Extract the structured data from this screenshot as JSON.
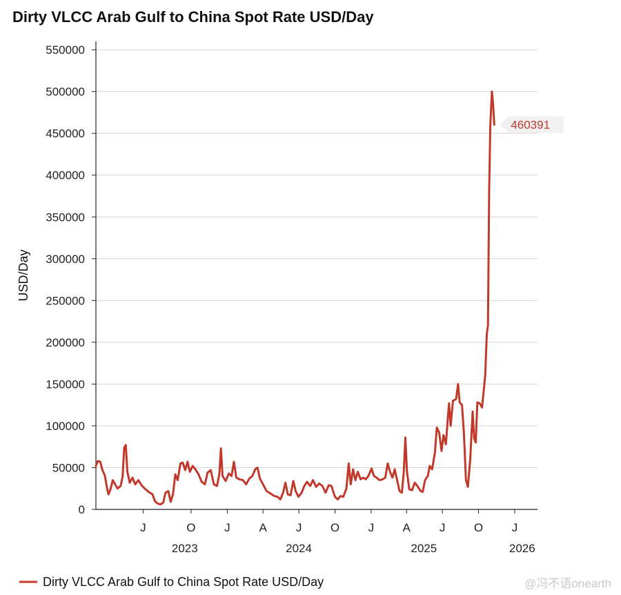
{
  "chart_data": {
    "type": "line",
    "title": "Dirty VLCC Arab Gulf to China Spot Rate USD/Day",
    "ylabel": "USD/Day",
    "xlabel": "",
    "ylim": [
      0,
      560000
    ],
    "xlim": [
      "2023-02-01",
      "2026-02-28"
    ],
    "grid": true,
    "legend_position": "bottom-left",
    "yticks": [
      "0",
      "50000",
      "100000",
      "150000",
      "200000",
      "250000",
      "300000",
      "350000",
      "400000",
      "450000",
      "500000",
      "550000"
    ],
    "xticks": [
      {
        "date": "2023-06-01",
        "label": "J"
      },
      {
        "date": "2023-10-01",
        "label": "O"
      },
      {
        "date": "2024-01-01",
        "label": "J"
      },
      {
        "date": "2024-04-01",
        "label": "A"
      },
      {
        "date": "2024-07-01",
        "label": "J"
      },
      {
        "date": "2024-10-01",
        "label": "O"
      },
      {
        "date": "2025-01-01",
        "label": "J"
      },
      {
        "date": "2025-04-01",
        "label": "A"
      },
      {
        "date": "2025-07-01",
        "label": "J"
      },
      {
        "date": "2025-10-01",
        "label": "O"
      },
      {
        "date": "2026-01-01",
        "label": "J"
      }
    ],
    "year_labels": [
      {
        "date": "2023-09-15",
        "label": "2023"
      },
      {
        "date": "2024-07-01",
        "label": "2024"
      },
      {
        "date": "2025-05-15",
        "label": "2025"
      },
      {
        "date": "2026-01-20",
        "label": "2026"
      }
    ],
    "last_value_label": "460391",
    "series": [
      {
        "name": "Dirty VLCC Arab Gulf to China Spot Rate USD/Day",
        "color": "#c0392b",
        "points": [
          [
            "2023-02-01",
            52000
          ],
          [
            "2023-02-06",
            58000
          ],
          [
            "2023-02-12",
            57000
          ],
          [
            "2023-02-17",
            48000
          ],
          [
            "2023-02-24",
            40000
          ],
          [
            "2023-03-01",
            26000
          ],
          [
            "2023-03-05",
            18000
          ],
          [
            "2023-03-10",
            24000
          ],
          [
            "2023-03-16",
            35000
          ],
          [
            "2023-03-22",
            30000
          ],
          [
            "2023-03-28",
            25000
          ],
          [
            "2023-04-05",
            28000
          ],
          [
            "2023-04-10",
            40000
          ],
          [
            "2023-04-14",
            74000
          ],
          [
            "2023-04-18",
            77000
          ],
          [
            "2023-04-22",
            45000
          ],
          [
            "2023-04-28",
            32000
          ],
          [
            "2023-05-05",
            38000
          ],
          [
            "2023-05-12",
            30000
          ],
          [
            "2023-05-20",
            35000
          ],
          [
            "2023-05-28",
            29000
          ],
          [
            "2023-06-05",
            25000
          ],
          [
            "2023-06-15",
            21000
          ],
          [
            "2023-06-25",
            18000
          ],
          [
            "2023-07-01",
            10000
          ],
          [
            "2023-07-08",
            7000
          ],
          [
            "2023-07-15",
            6000
          ],
          [
            "2023-07-22",
            8000
          ],
          [
            "2023-07-28",
            20000
          ],
          [
            "2023-08-04",
            22000
          ],
          [
            "2023-08-10",
            9000
          ],
          [
            "2023-08-16",
            18000
          ],
          [
            "2023-08-22",
            42000
          ],
          [
            "2023-08-28",
            35000
          ],
          [
            "2023-09-04",
            55000
          ],
          [
            "2023-09-10",
            56000
          ],
          [
            "2023-09-16",
            47000
          ],
          [
            "2023-09-22",
            57000
          ],
          [
            "2023-09-28",
            45000
          ],
          [
            "2023-10-05",
            52000
          ],
          [
            "2023-10-12",
            48000
          ],
          [
            "2023-10-20",
            42000
          ],
          [
            "2023-10-28",
            33000
          ],
          [
            "2023-11-05",
            30000
          ],
          [
            "2023-11-12",
            44000
          ],
          [
            "2023-11-20",
            47000
          ],
          [
            "2023-11-28",
            30000
          ],
          [
            "2023-12-06",
            28000
          ],
          [
            "2023-12-12",
            42000
          ],
          [
            "2023-12-16",
            73000
          ],
          [
            "2023-12-20",
            40000
          ],
          [
            "2023-12-28",
            34000
          ],
          [
            "2024-01-05",
            43000
          ],
          [
            "2024-01-12",
            40000
          ],
          [
            "2024-01-18",
            57000
          ],
          [
            "2024-01-24",
            38000
          ],
          [
            "2024-02-01",
            36000
          ],
          [
            "2024-02-10",
            35000
          ],
          [
            "2024-02-18",
            30000
          ],
          [
            "2024-02-26",
            37000
          ],
          [
            "2024-03-05",
            40000
          ],
          [
            "2024-03-12",
            48000
          ],
          [
            "2024-03-18",
            50000
          ],
          [
            "2024-03-24",
            37000
          ],
          [
            "2024-04-01",
            30000
          ],
          [
            "2024-04-10",
            22000
          ],
          [
            "2024-04-20",
            19000
          ],
          [
            "2024-04-30",
            16000
          ],
          [
            "2024-05-08",
            15000
          ],
          [
            "2024-05-15",
            12000
          ],
          [
            "2024-05-22",
            20000
          ],
          [
            "2024-05-28",
            32000
          ],
          [
            "2024-06-03",
            18000
          ],
          [
            "2024-06-10",
            17000
          ],
          [
            "2024-06-17",
            34000
          ],
          [
            "2024-06-23",
            22000
          ],
          [
            "2024-06-30",
            15000
          ],
          [
            "2024-07-08",
            20000
          ],
          [
            "2024-07-15",
            28000
          ],
          [
            "2024-07-22",
            33000
          ],
          [
            "2024-07-30",
            28000
          ],
          [
            "2024-08-06",
            35000
          ],
          [
            "2024-08-14",
            27000
          ],
          [
            "2024-08-22",
            31000
          ],
          [
            "2024-08-30",
            28000
          ],
          [
            "2024-09-07",
            20000
          ],
          [
            "2024-09-15",
            29000
          ],
          [
            "2024-09-22",
            28000
          ],
          [
            "2024-10-01",
            15000
          ],
          [
            "2024-10-08",
            12000
          ],
          [
            "2024-10-15",
            16000
          ],
          [
            "2024-10-22",
            15000
          ],
          [
            "2024-10-30",
            25000
          ],
          [
            "2024-11-05",
            55000
          ],
          [
            "2024-11-10",
            30000
          ],
          [
            "2024-11-16",
            48000
          ],
          [
            "2024-11-22",
            35000
          ],
          [
            "2024-11-28",
            45000
          ],
          [
            "2024-12-05",
            36000
          ],
          [
            "2024-12-12",
            38000
          ],
          [
            "2024-12-18",
            36000
          ],
          [
            "2024-12-25",
            40000
          ],
          [
            "2025-01-02",
            49000
          ],
          [
            "2025-01-08",
            40000
          ],
          [
            "2025-01-15",
            38000
          ],
          [
            "2025-01-22",
            35000
          ],
          [
            "2025-01-30",
            36000
          ],
          [
            "2025-02-06",
            38000
          ],
          [
            "2025-02-12",
            55000
          ],
          [
            "2025-02-18",
            45000
          ],
          [
            "2025-02-24",
            38000
          ],
          [
            "2025-03-02",
            48000
          ],
          [
            "2025-03-08",
            35000
          ],
          [
            "2025-03-14",
            22000
          ],
          [
            "2025-03-20",
            20000
          ],
          [
            "2025-03-25",
            45000
          ],
          [
            "2025-03-29",
            86000
          ],
          [
            "2025-04-02",
            45000
          ],
          [
            "2025-04-08",
            24000
          ],
          [
            "2025-04-15",
            23000
          ],
          [
            "2025-04-22",
            32000
          ],
          [
            "2025-04-30",
            27000
          ],
          [
            "2025-05-07",
            22000
          ],
          [
            "2025-05-12",
            21000
          ],
          [
            "2025-05-18",
            35000
          ],
          [
            "2025-05-25",
            40000
          ],
          [
            "2025-05-30",
            52000
          ],
          [
            "2025-06-05",
            48000
          ],
          [
            "2025-06-12",
            68000
          ],
          [
            "2025-06-17",
            98000
          ],
          [
            "2025-06-23",
            92000
          ],
          [
            "2025-06-29",
            70000
          ],
          [
            "2025-07-04",
            89000
          ],
          [
            "2025-07-10",
            78000
          ],
          [
            "2025-07-15",
            110000
          ],
          [
            "2025-07-18",
            127000
          ],
          [
            "2025-07-22",
            100000
          ],
          [
            "2025-07-28",
            130000
          ],
          [
            "2025-08-05",
            132000
          ],
          [
            "2025-08-10",
            150000
          ],
          [
            "2025-08-14",
            128000
          ],
          [
            "2025-08-20",
            125000
          ],
          [
            "2025-08-25",
            90000
          ],
          [
            "2025-08-30",
            35000
          ],
          [
            "2025-09-04",
            27000
          ],
          [
            "2025-09-10",
            60000
          ],
          [
            "2025-09-16",
            117000
          ],
          [
            "2025-09-20",
            85000
          ],
          [
            "2025-09-24",
            80000
          ],
          [
            "2025-09-28",
            128000
          ],
          [
            "2025-10-04",
            127000
          ],
          [
            "2025-10-10",
            122000
          ],
          [
            "2025-10-18",
            160000
          ],
          [
            "2025-10-22",
            210000
          ],
          [
            "2025-10-25",
            220000
          ],
          [
            "2025-10-28",
            380000
          ],
          [
            "2025-10-31",
            460000
          ],
          [
            "2025-11-04",
            500000
          ],
          [
            "2025-11-07",
            485000
          ],
          [
            "2025-11-10",
            460391
          ]
        ]
      }
    ]
  },
  "watermark": "@冯不语onearth"
}
